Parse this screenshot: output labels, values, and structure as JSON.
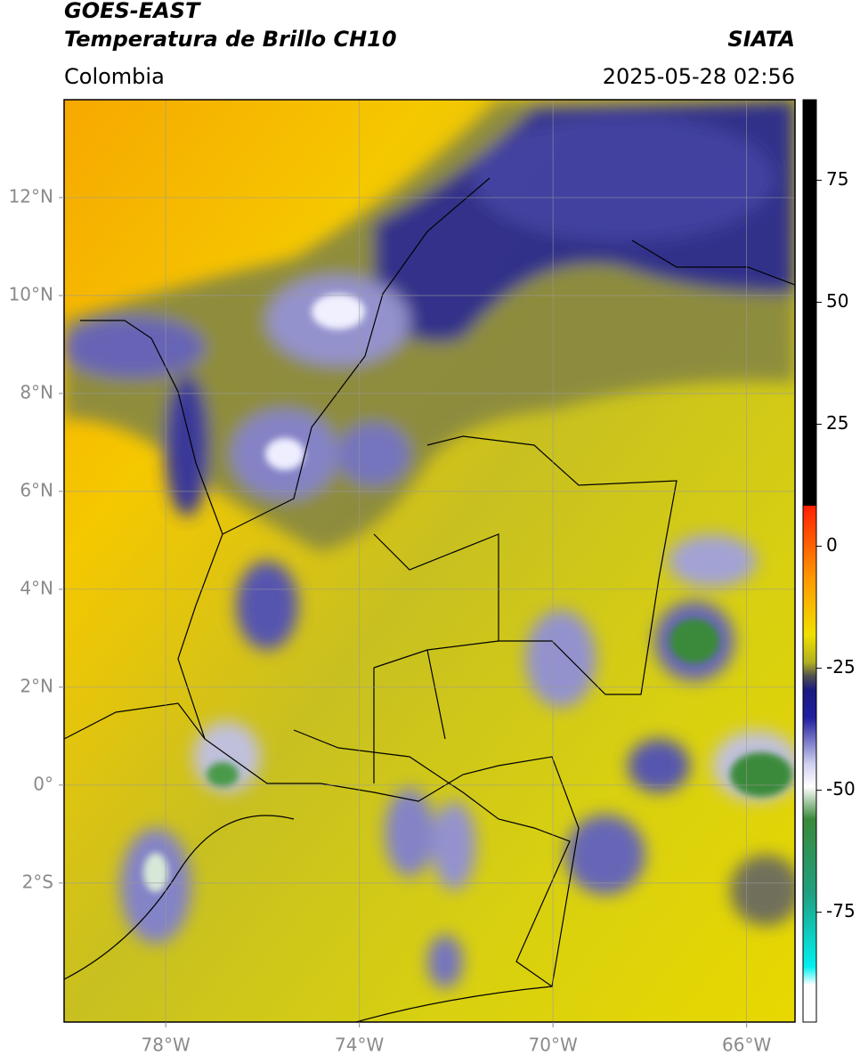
{
  "header": {
    "title": "GOES-EAST",
    "subtitle": "Temperatura de Brillo CH10",
    "source": "SIATA",
    "region": "Colombia",
    "datetime": "2025-05-28 02:56"
  },
  "map": {
    "xlim": [
      -80.1,
      -65
    ],
    "ylim": [
      -4.84,
      14
    ],
    "grid": true,
    "xticks": [
      {
        "value": -78,
        "label": "78°W"
      },
      {
        "value": -74,
        "label": "74°W"
      },
      {
        "value": -70,
        "label": "70°W"
      },
      {
        "value": -66,
        "label": "66°W"
      }
    ],
    "yticks": [
      {
        "value": 12,
        "label": "12°N"
      },
      {
        "value": 10,
        "label": "10°N"
      },
      {
        "value": 8,
        "label": "8°N"
      },
      {
        "value": 6,
        "label": "6°N"
      },
      {
        "value": 4,
        "label": "4°N"
      },
      {
        "value": 2,
        "label": "2°N"
      },
      {
        "value": 0,
        "label": "0°"
      },
      {
        "value": -2,
        "label": "2°S"
      }
    ]
  },
  "colorbar": {
    "lim": [
      -97.5,
      91.5
    ],
    "ticks": [
      75,
      50,
      25,
      0,
      -25,
      -50,
      -75
    ]
  }
}
